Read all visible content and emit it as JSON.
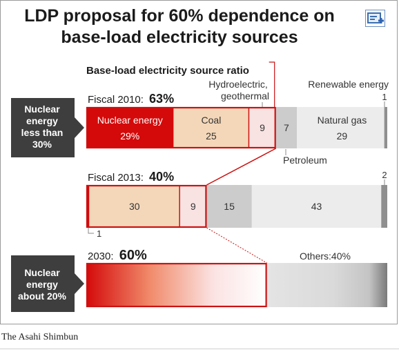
{
  "title_line1": "LDP proposal for 60% dependence on",
  "title_line2": "base-load electricity sources",
  "source_credit": "The Asahi Shimbun",
  "chart_data": {
    "type": "bar",
    "orientation": "horizontal-stacked",
    "subtitle": "Base-load electricity source ratio",
    "bars": [
      {
        "year_label": "Fiscal 2010:",
        "base_load_total": "63%",
        "side_label": [
          "Nuclear",
          "energy",
          "less than",
          "30%"
        ],
        "segments": [
          {
            "name": "Nuclear energy",
            "value": 29,
            "label": "29%",
            "color": "#d40a0a"
          },
          {
            "name": "Coal",
            "value": 25,
            "label": "25",
            "color": "#f4d7b9"
          },
          {
            "name": "Hydroelectric, geothermal",
            "value": 9,
            "label": "9",
            "color": "#f9e2e2"
          },
          {
            "name": "Petroleum",
            "value": 7,
            "label": "7",
            "color": "#cccccc"
          },
          {
            "name": "Natural gas",
            "value": 29,
            "label": "29",
            "color": "#ececec"
          },
          {
            "name": "Renewable energy",
            "value": 1,
            "label": "1",
            "color": "#8f8f8f"
          }
        ]
      },
      {
        "year_label": "Fiscal 2013:",
        "base_load_total": "40%",
        "segments": [
          {
            "name": "Nuclear energy",
            "value": 1,
            "label": "1",
            "color": "#d40a0a"
          },
          {
            "name": "Coal",
            "value": 30,
            "label": "30",
            "color": "#f4d7b9"
          },
          {
            "name": "Hydroelectric, geothermal",
            "value": 9,
            "label": "9",
            "color": "#f9e2e2"
          },
          {
            "name": "Petroleum",
            "value": 15,
            "label": "15",
            "color": "#cccccc"
          },
          {
            "name": "Natural gas",
            "value": 43,
            "label": "43",
            "color": "#ececec"
          },
          {
            "name": "Renewable energy",
            "value": 2,
            "label": "2",
            "color": "#8f8f8f"
          }
        ]
      },
      {
        "year_label": "2030:",
        "base_load_total": "60%",
        "side_label": [
          "Nuclear",
          "energy",
          "about 20%"
        ],
        "segments": [
          {
            "name": "Base-load",
            "value": 60,
            "label": "",
            "color": "#d40a0a"
          },
          {
            "name": "Others",
            "value": 40,
            "label": "Others:40%",
            "color": "#dcdcdc"
          }
        ]
      }
    ],
    "annotations": {
      "hydro": [
        "Hydroelectric,",
        "geothermal"
      ],
      "renewable": "Renewable energy",
      "petroleum": "Petroleum"
    }
  }
}
